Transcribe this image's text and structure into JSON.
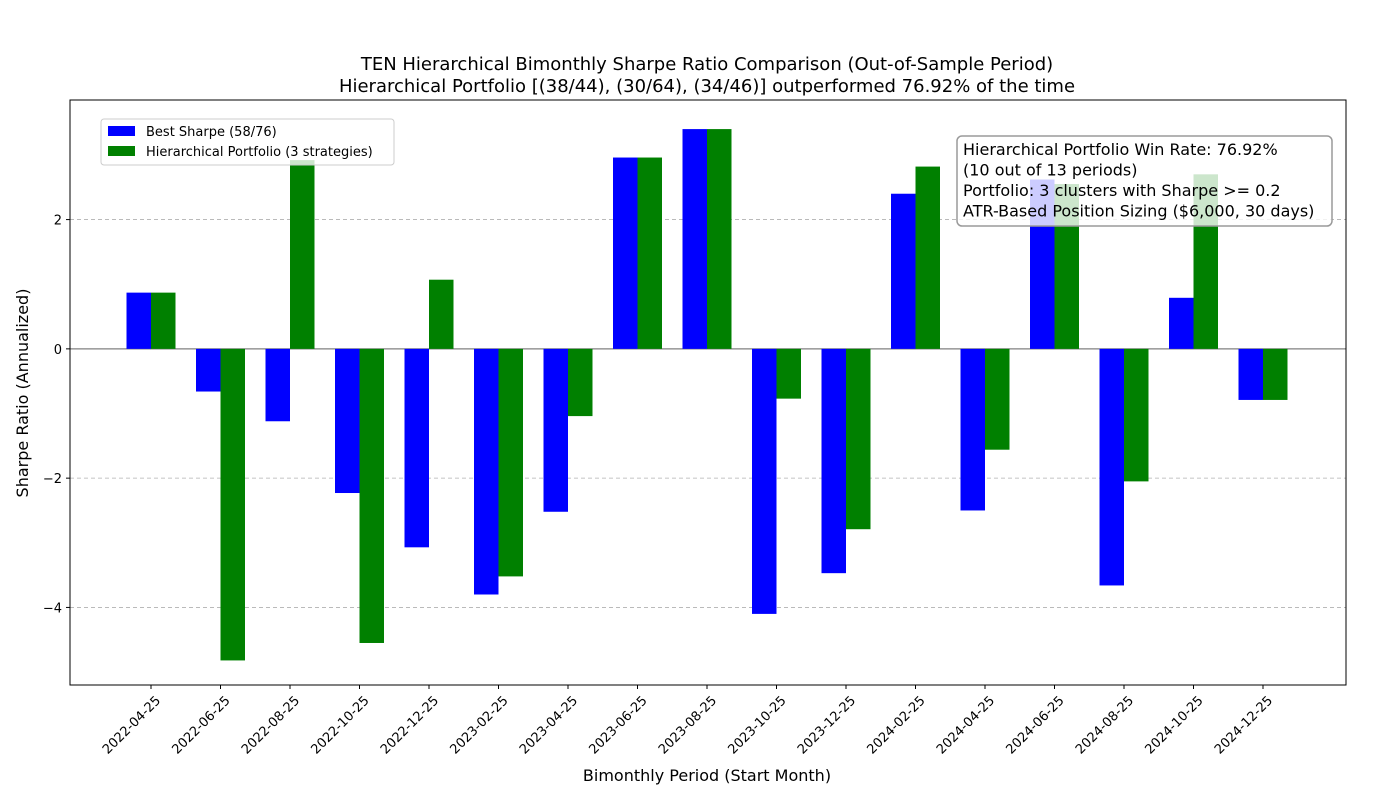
{
  "chart_data": {
    "type": "bar",
    "title": "TEN Hierarchical Bimonthly Sharpe Ratio Comparison (Out-of-Sample Period)",
    "subtitle": "Hierarchical Portfolio [(38/44), (30/64), (34/46)] outperformed 76.92% of the time",
    "xlabel": "Bimonthly Period (Start Month)",
    "ylabel": "Sharpe Ratio (Annualized)",
    "ylim": [
      -5.2,
      3.85
    ],
    "yticks": [
      -4,
      -2,
      0,
      2
    ],
    "grid": "horizontal dashed",
    "legend_position": "top-left",
    "categories": [
      "2022-04-25",
      "2022-06-25",
      "2022-08-25",
      "2022-10-25",
      "2022-12-25",
      "2023-02-25",
      "2023-04-25",
      "2023-06-25",
      "2023-08-25",
      "2023-10-25",
      "2023-12-25",
      "2024-02-25",
      "2024-04-25",
      "2024-06-25",
      "2024-08-25",
      "2024-10-25",
      "2024-12-25"
    ],
    "series": [
      {
        "name": "Best Sharpe (58/76)",
        "color": "#0000ff",
        "values": [
          0.87,
          -0.66,
          -1.12,
          -2.23,
          -3.07,
          -3.8,
          -2.52,
          2.96,
          3.4,
          -4.1,
          -3.47,
          2.4,
          -2.5,
          2.62,
          -3.66,
          0.79,
          -0.79
        ]
      },
      {
        "name": "Hierarchical Portfolio (3 strategies)",
        "color": "#008000",
        "values": [
          0.87,
          -4.82,
          2.92,
          -4.55,
          1.07,
          -3.52,
          -1.04,
          2.96,
          3.4,
          -0.77,
          -2.79,
          2.82,
          -1.56,
          2.55,
          -2.05,
          2.7,
          -0.79
        ]
      }
    ],
    "annotation_lines": [
      "Hierarchical Portfolio Win Rate: 76.92%",
      "(10 out of 13 periods)",
      "Portfolio: 3 clusters with Sharpe >= 0.2",
      "ATR-Based Position Sizing ($6,000, 30 days)"
    ]
  }
}
